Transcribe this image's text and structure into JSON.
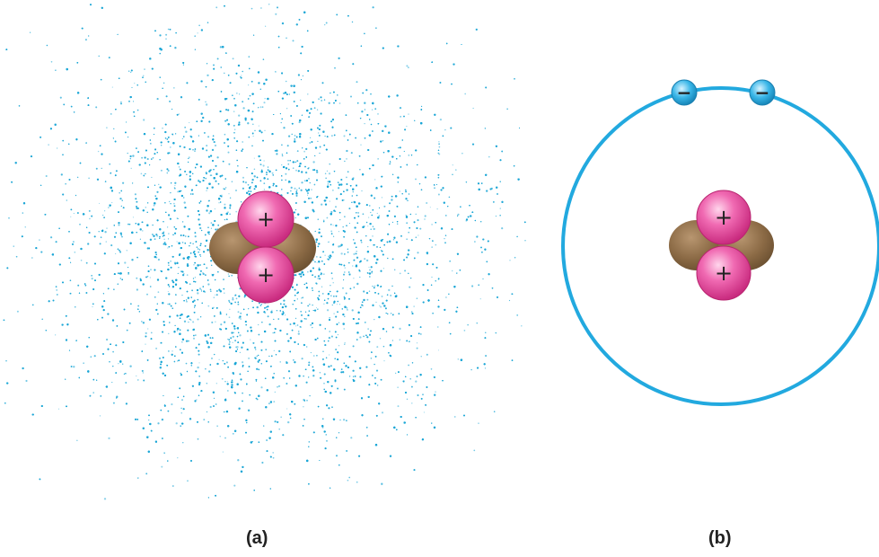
{
  "panels": {
    "a": {
      "caption": "(a)",
      "proton_signs": [
        "+",
        "+"
      ]
    },
    "b": {
      "caption": "(b)",
      "proton_signs": [
        "+",
        "+"
      ],
      "electron_signs": [
        "−",
        "−"
      ]
    }
  },
  "colors": {
    "cloud": "#1aa6d6",
    "orbit": "#22a9df",
    "proton": "#e4479b",
    "neutron": "#8b6a45",
    "electron": "#2aaee3"
  }
}
